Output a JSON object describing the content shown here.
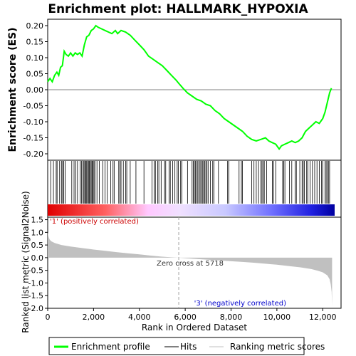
{
  "chart_data": {
    "type": "line",
    "title": "Enrichment plot: HALLMARK_HYPOXIA",
    "es_panel": {
      "ylabel": "Enrichment score (ES)",
      "ylim": [
        -0.22,
        0.22
      ],
      "yticks": [
        "0.20",
        "0.15",
        "0.10",
        "0.05",
        "0.00",
        "-0.05",
        "-0.10",
        "-0.15",
        "-0.20"
      ],
      "ytick_values": [
        0.2,
        0.15,
        0.1,
        0.05,
        0.0,
        -0.05,
        -0.1,
        -0.15,
        -0.2
      ],
      "series": [
        {
          "name": "Enrichment profile",
          "color": "#00ff00",
          "points": [
            [
              0,
              0.025
            ],
            [
              100,
              0.035
            ],
            [
              200,
              0.025
            ],
            [
              300,
              0.045
            ],
            [
              400,
              0.055
            ],
            [
              480,
              0.045
            ],
            [
              560,
              0.07
            ],
            [
              640,
              0.075
            ],
            [
              720,
              0.12
            ],
            [
              800,
              0.11
            ],
            [
              900,
              0.105
            ],
            [
              1000,
              0.115
            ],
            [
              1100,
              0.105
            ],
            [
              1200,
              0.115
            ],
            [
              1300,
              0.11
            ],
            [
              1400,
              0.115
            ],
            [
              1500,
              0.105
            ],
            [
              1600,
              0.14
            ],
            [
              1700,
              0.165
            ],
            [
              1800,
              0.17
            ],
            [
              1900,
              0.185
            ],
            [
              2000,
              0.19
            ],
            [
              2100,
              0.2
            ],
            [
              2200,
              0.195
            ],
            [
              2350,
              0.19
            ],
            [
              2500,
              0.185
            ],
            [
              2650,
              0.18
            ],
            [
              2800,
              0.175
            ],
            [
              2950,
              0.185
            ],
            [
              3050,
              0.175
            ],
            [
              3200,
              0.185
            ],
            [
              3400,
              0.18
            ],
            [
              3600,
              0.17
            ],
            [
              3800,
              0.155
            ],
            [
              4000,
              0.14
            ],
            [
              4200,
              0.125
            ],
            [
              4400,
              0.105
            ],
            [
              4600,
              0.095
            ],
            [
              4800,
              0.085
            ],
            [
              5000,
              0.075
            ],
            [
              5200,
              0.06
            ],
            [
              5400,
              0.045
            ],
            [
              5600,
              0.03
            ],
            [
              5718,
              0.02
            ],
            [
              5900,
              0.005
            ],
            [
              6100,
              -0.01
            ],
            [
              6300,
              -0.02
            ],
            [
              6500,
              -0.03
            ],
            [
              6700,
              -0.035
            ],
            [
              6900,
              -0.045
            ],
            [
              7100,
              -0.05
            ],
            [
              7300,
              -0.065
            ],
            [
              7500,
              -0.075
            ],
            [
              7700,
              -0.09
            ],
            [
              7900,
              -0.1
            ],
            [
              8100,
              -0.11
            ],
            [
              8300,
              -0.12
            ],
            [
              8500,
              -0.13
            ],
            [
              8700,
              -0.145
            ],
            [
              8900,
              -0.155
            ],
            [
              9100,
              -0.16
            ],
            [
              9300,
              -0.155
            ],
            [
              9500,
              -0.15
            ],
            [
              9650,
              -0.16
            ],
            [
              9800,
              -0.165
            ],
            [
              9950,
              -0.17
            ],
            [
              10100,
              -0.185
            ],
            [
              10200,
              -0.175
            ],
            [
              10350,
              -0.17
            ],
            [
              10500,
              -0.165
            ],
            [
              10650,
              -0.16
            ],
            [
              10800,
              -0.165
            ],
            [
              10950,
              -0.16
            ],
            [
              11100,
              -0.15
            ],
            [
              11250,
              -0.13
            ],
            [
              11400,
              -0.12
            ],
            [
              11550,
              -0.11
            ],
            [
              11700,
              -0.1
            ],
            [
              11850,
              -0.105
            ],
            [
              12000,
              -0.09
            ],
            [
              12100,
              -0.07
            ],
            [
              12200,
              -0.04
            ],
            [
              12300,
              -0.01
            ],
            [
              12380,
              0.005
            ]
          ]
        }
      ]
    },
    "hits_panel": {
      "hit_ranks": [
        130,
        250,
        370,
        410,
        520,
        600,
        650,
        700,
        760,
        1050,
        1150,
        1230,
        1300,
        1420,
        1480,
        1540,
        1580,
        1620,
        1660,
        1700,
        1740,
        1780,
        1820,
        1860,
        1900,
        1940,
        1980,
        2020,
        2060,
        2150,
        2250,
        2400,
        2500,
        2600,
        2750,
        2850,
        2900,
        3100,
        3150,
        3200,
        3300,
        3400,
        3450,
        3600,
        3850,
        4200,
        4550,
        4650,
        4700,
        4800,
        4850,
        4950,
        5100,
        5150,
        5300,
        5350,
        5450,
        5550,
        5650,
        5700,
        5800,
        5850,
        6100,
        6300,
        6350,
        6400,
        6450,
        6500,
        6550,
        6600,
        6650,
        6700,
        6750,
        6800,
        6850,
        6900,
        6950,
        7000,
        7100,
        7200,
        7250,
        7450,
        7850,
        7900,
        8350,
        8450,
        8500,
        8900,
        9000,
        9100,
        9200,
        9300,
        9350,
        9400,
        9450,
        9550,
        9800,
        9850,
        9950,
        10250,
        10300,
        10350,
        10550,
        10650,
        10800,
        10850,
        11000,
        11100,
        11150,
        11200,
        11300,
        11350,
        11450,
        11550,
        11650,
        11750,
        11850,
        11950,
        12000,
        12100,
        12150,
        12200,
        12250,
        12300
      ],
      "heatmap_colors_note": "red (positive) to blue (negative)"
    },
    "metric_panel": {
      "ylabel": "Ranked list metric (Signal2Noise)",
      "ylim": [
        -2.0,
        1.6
      ],
      "yticks": [
        "1.5",
        "1.0",
        "0.5",
        "0.0",
        "-0.5",
        "-1.0",
        "-1.5",
        "-2.0"
      ],
      "ytick_values": [
        1.5,
        1.0,
        0.5,
        0.0,
        -0.5,
        -1.0,
        -1.5,
        -2.0
      ],
      "metric_points": [
        [
          0,
          1.0
        ],
        [
          30,
          0.85
        ],
        [
          80,
          0.72
        ],
        [
          150,
          0.65
        ],
        [
          300,
          0.58
        ],
        [
          600,
          0.5
        ],
        [
          1000,
          0.44
        ],
        [
          1500,
          0.38
        ],
        [
          2000,
          0.32
        ],
        [
          2500,
          0.27
        ],
        [
          3000,
          0.22
        ],
        [
          3500,
          0.17
        ],
        [
          4000,
          0.13
        ],
        [
          4500,
          0.08
        ],
        [
          5000,
          0.04
        ],
        [
          5400,
          0.015
        ],
        [
          5718,
          0.0
        ],
        [
          6000,
          -0.02
        ],
        [
          6500,
          -0.05
        ],
        [
          7000,
          -0.08
        ],
        [
          7500,
          -0.11
        ],
        [
          8000,
          -0.14
        ],
        [
          8500,
          -0.17
        ],
        [
          9000,
          -0.2
        ],
        [
          9500,
          -0.24
        ],
        [
          10000,
          -0.28
        ],
        [
          10500,
          -0.33
        ],
        [
          11000,
          -0.38
        ],
        [
          11500,
          -0.45
        ],
        [
          11800,
          -0.52
        ],
        [
          12000,
          -0.58
        ],
        [
          12200,
          -0.7
        ],
        [
          12300,
          -0.85
        ],
        [
          12350,
          -1.05
        ],
        [
          12390,
          -1.35
        ],
        [
          12410,
          -1.9
        ]
      ],
      "pos_label": "'1' (positively correlated)",
      "neg_label": "'3' (negatively correlated)",
      "zero_cross_label": "Zero cross at 5718",
      "zero_cross": 5718
    },
    "xlabel": "Rank in Ordered Dataset",
    "xlim": [
      0,
      12800
    ],
    "xticks": [
      "0",
      "2,000",
      "4,000",
      "6,000",
      "8,000",
      "10,000",
      "12,000"
    ],
    "xtick_values": [
      0,
      2000,
      4000,
      6000,
      8000,
      10000,
      12000
    ],
    "legend": {
      "placement": "bottom",
      "items": [
        {
          "label": "Enrichment profile",
          "color": "#00ff00"
        },
        {
          "label": "Hits",
          "color": "#000000"
        },
        {
          "label": "Ranking metric scores",
          "color": "#c0c0c0"
        }
      ]
    }
  }
}
